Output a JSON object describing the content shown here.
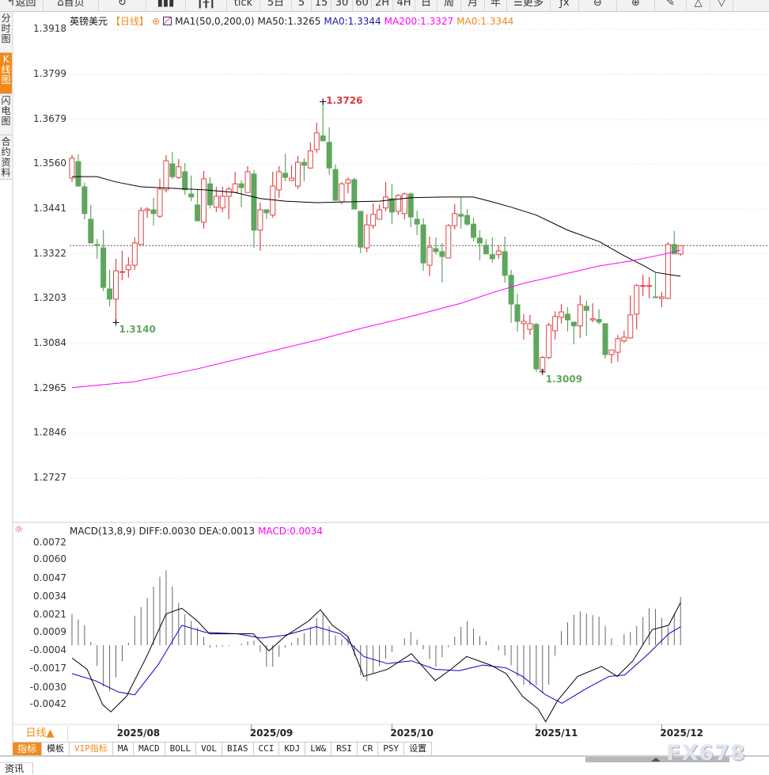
{
  "toolbar": {
    "items": [
      {
        "label": "↰返回",
        "w": 55
      },
      {
        "label": "⌂首页",
        "w": 70
      },
      {
        "label": "↻",
        "w": 60
      },
      {
        "label": "▮▮▮",
        "w": 50
      },
      {
        "label": "┃╂┃",
        "w": 52
      },
      {
        "label": "tick",
        "w": 42
      },
      {
        "label": "5日",
        "w": 40
      },
      {
        "label": "5",
        "w": 25
      },
      {
        "label": "15",
        "w": 25
      },
      {
        "label": "30",
        "w": 27
      },
      {
        "label": "60",
        "w": 24
      },
      {
        "label": "2H",
        "w": 27
      },
      {
        "label": "4H",
        "w": 28
      },
      {
        "label": "日",
        "w": 28
      },
      {
        "label": "周",
        "w": 30
      },
      {
        "label": "月",
        "w": 30
      },
      {
        "label": "年",
        "w": 28
      },
      {
        "label": "☰更多",
        "w": 55
      },
      {
        "label": "ƒx",
        "w": 36
      },
      {
        "label": "⊖",
        "w": 48
      },
      {
        "label": "⊕",
        "w": 48
      },
      {
        "label": "✎",
        "w": 40
      },
      {
        "label": "△",
        "w": 30
      },
      {
        "label": "▽",
        "w": 29
      }
    ]
  },
  "left_tabs": [
    {
      "label": "分时图",
      "active": false
    },
    {
      "label": "K线图",
      "active": true
    },
    {
      "label": "闪电图",
      "active": false
    },
    {
      "label": "合约资料",
      "active": false
    }
  ],
  "legend": {
    "symbol": "英镑美元",
    "period": "【日线】",
    "settings_icon": "⊕",
    "indicator": "MA1(50,0,200,0)",
    "ma50": "MA50:1.3265",
    "ma0_a": "MA0:1.3344",
    "ma200": "MA200:1.3327",
    "ma0_b": "MA0:1.3344"
  },
  "macd_legend": {
    "name": "MACD(13,8,9)",
    "diff": "DIFF:0.0030",
    "dea": "DEA:0.0013",
    "macd": "MACD:0.0034"
  },
  "colors": {
    "up": "#e04545",
    "down": "#5fa65f",
    "ma50": "#000000",
    "ma200": "#ff00ff",
    "dea": "#0000cc",
    "diff": "#000000",
    "accent": "#f08a1c",
    "last_price_line": "#1e7be0"
  },
  "chart_data": [
    {
      "type": "candlestick",
      "ylim": [
        1.2727,
        1.3918
      ],
      "y_ticks": [
        "1.3918",
        "1.3799",
        "1.3679",
        "1.3560",
        "1.3441",
        "1.3322",
        "1.3203",
        "1.3084",
        "1.2965",
        "1.2846",
        "1.2727"
      ],
      "x_ticks": [
        {
          "label": "2025/08",
          "i": 7.4
        },
        {
          "label": "2025/09",
          "i": 28.6
        },
        {
          "label": "2025/10",
          "i": 51
        },
        {
          "label": "2025/11",
          "i": 74
        },
        {
          "label": "2025/12",
          "i": 94
        }
      ],
      "last_price": 1.3344,
      "annotations": [
        {
          "label": "1.3726",
          "i": 40,
          "value": 1.3726,
          "color": "#d83a3a"
        },
        {
          "label": "1.3140",
          "i": 7,
          "value": 1.314,
          "color": "#5fa65f"
        },
        {
          "label": "1.3009",
          "i": 75,
          "value": 1.3009,
          "color": "#5fa65f"
        }
      ],
      "ohlc": [
        [
          1.3523,
          1.3584,
          1.3513,
          1.3576
        ],
        [
          1.3567,
          1.3586,
          1.35,
          1.3502
        ],
        [
          1.35,
          1.3511,
          1.3414,
          1.3429
        ],
        [
          1.3414,
          1.3452,
          1.3351,
          1.3351
        ],
        [
          1.3347,
          1.3362,
          1.3309,
          1.3345
        ],
        [
          1.3338,
          1.3385,
          1.3223,
          1.3233
        ],
        [
          1.3229,
          1.328,
          1.3183,
          1.3202
        ],
        [
          1.3202,
          1.3309,
          1.314,
          1.3277
        ],
        [
          1.3273,
          1.333,
          1.3252,
          1.3275
        ],
        [
          1.328,
          1.3313,
          1.3259,
          1.3292
        ],
        [
          1.3292,
          1.3366,
          1.328,
          1.3351
        ],
        [
          1.3347,
          1.3446,
          1.3347,
          1.3437
        ],
        [
          1.3437,
          1.3446,
          1.3418,
          1.3441
        ],
        [
          1.3439,
          1.3471,
          1.3397,
          1.3429
        ],
        [
          1.3422,
          1.3521,
          1.3418,
          1.3494
        ],
        [
          1.3492,
          1.3584,
          1.3485,
          1.3569
        ],
        [
          1.3561,
          1.3592,
          1.3521,
          1.3527
        ],
        [
          1.3525,
          1.3574,
          1.3521,
          1.3553
        ],
        [
          1.354,
          1.3563,
          1.3479,
          1.3492
        ],
        [
          1.3481,
          1.353,
          1.3462,
          1.3473
        ],
        [
          1.3452,
          1.3494,
          1.3408,
          1.341
        ],
        [
          1.3406,
          1.3542,
          1.3389,
          1.3521
        ],
        [
          1.3508,
          1.3525,
          1.3443,
          1.3452
        ],
        [
          1.3446,
          1.35,
          1.3433,
          1.3475
        ],
        [
          1.3444,
          1.35,
          1.3433,
          1.3475
        ],
        [
          1.3475,
          1.35,
          1.3414,
          1.3494
        ],
        [
          1.3485,
          1.354,
          1.3483,
          1.3508
        ],
        [
          1.3508,
          1.3517,
          1.3446,
          1.3498
        ],
        [
          1.3485,
          1.3555,
          1.3485,
          1.354
        ],
        [
          1.3534,
          1.3544,
          1.3338,
          1.3385
        ],
        [
          1.3385,
          1.3458,
          1.333,
          1.3439
        ],
        [
          1.3439,
          1.3439,
          1.3414,
          1.3431
        ],
        [
          1.3425,
          1.354,
          1.3418,
          1.3502
        ],
        [
          1.3492,
          1.3555,
          1.3471,
          1.354
        ],
        [
          1.3536,
          1.3588,
          1.3515,
          1.3525
        ],
        [
          1.3517,
          1.3557,
          1.3515,
          1.3523
        ],
        [
          1.3502,
          1.3582,
          1.3494,
          1.3565
        ],
        [
          1.3565,
          1.3576,
          1.3515,
          1.3557
        ],
        [
          1.355,
          1.3618,
          1.3548,
          1.3595
        ],
        [
          1.3599,
          1.367,
          1.359,
          1.3643
        ],
        [
          1.3635,
          1.3726,
          1.3622,
          1.3622
        ],
        [
          1.3618,
          1.3658,
          1.3532,
          1.355
        ],
        [
          1.3546,
          1.3559,
          1.3464,
          1.3464
        ],
        [
          1.346,
          1.3512,
          1.3454,
          1.3508
        ],
        [
          1.351,
          1.3525,
          1.3483,
          1.3519
        ],
        [
          1.3519,
          1.3525,
          1.3441,
          1.3441
        ],
        [
          1.3435,
          1.3435,
          1.3324,
          1.334
        ],
        [
          1.3338,
          1.3427,
          1.3326,
          1.3399
        ],
        [
          1.3397,
          1.3456,
          1.3389,
          1.3427
        ],
        [
          1.3414,
          1.3454,
          1.3414,
          1.3439
        ],
        [
          1.3444,
          1.3513,
          1.3435,
          1.3473
        ],
        [
          1.3469,
          1.3508,
          1.3401,
          1.3433
        ],
        [
          1.3435,
          1.3481,
          1.3425,
          1.3477
        ],
        [
          1.3429,
          1.3485,
          1.3414,
          1.3481
        ],
        [
          1.3481,
          1.3485,
          1.3393,
          1.342
        ],
        [
          1.3414,
          1.3437,
          1.3372,
          1.3401
        ],
        [
          1.3399,
          1.3416,
          1.3277,
          1.3298
        ],
        [
          1.3292,
          1.3368,
          1.3263,
          1.334
        ],
        [
          1.3336,
          1.3366,
          1.332,
          1.3328
        ],
        [
          1.3328,
          1.3351,
          1.3246,
          1.3315
        ],
        [
          1.3311,
          1.3401,
          1.3311,
          1.3397
        ],
        [
          1.3397,
          1.3454,
          1.3387,
          1.3429
        ],
        [
          1.3427,
          1.3471,
          1.3389,
          1.3422
        ],
        [
          1.3424,
          1.3441,
          1.3397,
          1.3401
        ],
        [
          1.3401,
          1.3418,
          1.3355,
          1.3366
        ],
        [
          1.3364,
          1.3385,
          1.3305,
          1.3351
        ],
        [
          1.3345,
          1.3361,
          1.3322,
          1.3322
        ],
        [
          1.332,
          1.3366,
          1.3299,
          1.3309
        ],
        [
          1.332,
          1.3345,
          1.3309,
          1.333
        ],
        [
          1.3328,
          1.3368,
          1.3246,
          1.3265
        ],
        [
          1.3265,
          1.328,
          1.3139,
          1.3189
        ],
        [
          1.3187,
          1.3216,
          1.3116,
          1.3143
        ],
        [
          1.3137,
          1.3162,
          1.3095,
          1.3143
        ],
        [
          1.3122,
          1.316,
          1.3107,
          1.3137
        ],
        [
          1.3135,
          1.3139,
          1.3009,
          1.3017
        ],
        [
          1.3014,
          1.3051,
          1.3011,
          1.3047
        ],
        [
          1.3047,
          1.3139,
          1.3043,
          1.3133
        ],
        [
          1.3118,
          1.317,
          1.3095,
          1.3156
        ],
        [
          1.3154,
          1.3189,
          1.3137,
          1.3168
        ],
        [
          1.3162,
          1.3181,
          1.3116,
          1.3147
        ],
        [
          1.3141,
          1.3141,
          1.3082,
          1.3131
        ],
        [
          1.3131,
          1.3212,
          1.3099,
          1.3187
        ],
        [
          1.3183,
          1.3198,
          1.3105,
          1.3172
        ],
        [
          1.3147,
          1.3191,
          1.3141,
          1.315
        ],
        [
          1.3148,
          1.3175,
          1.3135,
          1.3141
        ],
        [
          1.3137,
          1.3137,
          1.3044,
          1.3055
        ],
        [
          1.3055,
          1.3068,
          1.3032,
          1.3067
        ],
        [
          1.3061,
          1.3107,
          1.3036,
          1.3097
        ],
        [
          1.3091,
          1.3118,
          1.3086,
          1.3101
        ],
        [
          1.3099,
          1.3212,
          1.3097,
          1.316
        ],
        [
          1.3162,
          1.3242,
          1.3122,
          1.3238
        ],
        [
          1.3236,
          1.3267,
          1.321,
          1.3238
        ],
        [
          1.3236,
          1.3261,
          1.3204,
          1.3238
        ],
        [
          1.3208,
          1.3271,
          1.3208,
          1.3206
        ],
        [
          1.3204,
          1.3221,
          1.3181,
          1.3208
        ],
        [
          1.3204,
          1.3353,
          1.3202,
          1.3347
        ],
        [
          1.3347,
          1.3383,
          1.3322,
          1.3322
        ],
        [
          1.3322,
          1.3341,
          1.3317,
          1.3344
        ]
      ],
      "ma50": [
        [
          0,
          1.3527
        ],
        [
          4,
          1.3527
        ],
        [
          7,
          1.3513
        ],
        [
          11,
          1.35
        ],
        [
          16,
          1.3496
        ],
        [
          21,
          1.3492
        ],
        [
          26,
          1.3485
        ],
        [
          30,
          1.3469
        ],
        [
          34,
          1.3462
        ],
        [
          39,
          1.3458
        ],
        [
          44,
          1.346
        ],
        [
          49,
          1.3462
        ],
        [
          54,
          1.3471
        ],
        [
          59,
          1.3473
        ],
        [
          64,
          1.3473
        ],
        [
          67,
          1.346
        ],
        [
          70,
          1.3446
        ],
        [
          74,
          1.3425
        ],
        [
          77,
          1.3401
        ],
        [
          79,
          1.3385
        ],
        [
          84,
          1.3355
        ],
        [
          88,
          1.3317
        ],
        [
          91,
          1.3292
        ],
        [
          93,
          1.3273
        ],
        [
          96,
          1.3265
        ],
        [
          97,
          1.3263
        ]
      ],
      "ma200": [
        [
          0,
          1.2967
        ],
        [
          10,
          1.2983
        ],
        [
          20,
          1.3017
        ],
        [
          30,
          1.3057
        ],
        [
          39,
          1.3093
        ],
        [
          46,
          1.3124
        ],
        [
          54,
          1.3156
        ],
        [
          62,
          1.3191
        ],
        [
          67,
          1.3219
        ],
        [
          72,
          1.3244
        ],
        [
          77,
          1.3263
        ],
        [
          84,
          1.329
        ],
        [
          89,
          1.3303
        ],
        [
          94,
          1.332
        ],
        [
          97,
          1.3332
        ]
      ]
    },
    {
      "type": "line",
      "title": "MACD(13,8,9)",
      "ylim": [
        -0.0042,
        0.0072
      ],
      "y_ticks": [
        "0.0072",
        "0.0060",
        "0.0047",
        "0.0034",
        "0.0021",
        "0.0009",
        "-0.0004",
        "-0.0017",
        "-0.0030",
        "-0.0042"
      ],
      "diff": [
        [
          0,
          -0.0009
        ],
        [
          2.4,
          -0.0017
        ],
        [
          4.9,
          -0.0042
        ],
        [
          6.2,
          -0.0047
        ],
        [
          8.7,
          -0.0036
        ],
        [
          11.9,
          -0.0008
        ],
        [
          15,
          0.0022
        ],
        [
          17.5,
          0.0026
        ],
        [
          20,
          0.0017
        ],
        [
          21.9,
          0.0008
        ],
        [
          25.1,
          0.0008
        ],
        [
          28.9,
          0.0008
        ],
        [
          31.4,
          -0.0004
        ],
        [
          33.9,
          0.0006
        ],
        [
          37.7,
          0.0017
        ],
        [
          39.6,
          0.0025
        ],
        [
          41.5,
          0.0014
        ],
        [
          44,
          0.0006
        ],
        [
          46.5,
          -0.0022
        ],
        [
          50.3,
          -0.0017
        ],
        [
          54.1,
          -0.0006
        ],
        [
          57.9,
          -0.0025
        ],
        [
          60.4,
          -0.0017
        ],
        [
          62.9,
          -0.0008
        ],
        [
          66.7,
          -0.0014
        ],
        [
          69.2,
          -0.002
        ],
        [
          71.8,
          -0.0036
        ],
        [
          74.3,
          -0.0045
        ],
        [
          75.5,
          -0.0054
        ],
        [
          77.4,
          -0.0039
        ],
        [
          80.6,
          -0.0022
        ],
        [
          84.4,
          -0.0015
        ],
        [
          86.9,
          -0.0022
        ],
        [
          89.4,
          -0.0011
        ],
        [
          92.5,
          0.0011
        ],
        [
          95.1,
          0.0014
        ],
        [
          97,
          0.003
        ]
      ],
      "dea": [
        [
          0,
          -0.002
        ],
        [
          3.7,
          -0.0025
        ],
        [
          7.4,
          -0.0033
        ],
        [
          10,
          -0.0035
        ],
        [
          13.7,
          -0.0014
        ],
        [
          17.5,
          0.0014
        ],
        [
          21.3,
          0.0009
        ],
        [
          26.4,
          0.0008
        ],
        [
          30.1,
          0.0005
        ],
        [
          33.9,
          0.0007
        ],
        [
          38.9,
          0.0013
        ],
        [
          42.8,
          0.0008
        ],
        [
          46.5,
          -0.0008
        ],
        [
          50.3,
          -0.0013
        ],
        [
          54.1,
          -0.0011
        ],
        [
          57.9,
          -0.0017
        ],
        [
          61.7,
          -0.0018
        ],
        [
          65.5,
          -0.0014
        ],
        [
          69.2,
          -0.0016
        ],
        [
          71.8,
          -0.0022
        ],
        [
          75.5,
          -0.0035
        ],
        [
          78.1,
          -0.0041
        ],
        [
          81.8,
          -0.0031
        ],
        [
          85.6,
          -0.0022
        ],
        [
          88.1,
          -0.0021
        ],
        [
          91.9,
          -0.0006
        ],
        [
          95.1,
          0.0008
        ],
        [
          97,
          0.0013
        ]
      ]
    }
  ],
  "period_selector": "日线▲",
  "bottom_tabs": [
    {
      "label": "指标",
      "cls": "active"
    },
    {
      "label": "模板",
      "cls": ""
    },
    {
      "label": "VIP指标",
      "cls": "vip"
    },
    {
      "label": "MA",
      "cls": ""
    },
    {
      "label": "MACD",
      "cls": ""
    },
    {
      "label": "BOLL",
      "cls": ""
    },
    {
      "label": "VOL",
      "cls": ""
    },
    {
      "label": "BIAS",
      "cls": ""
    },
    {
      "label": "CCI",
      "cls": ""
    },
    {
      "label": "KDJ",
      "cls": ""
    },
    {
      "label": "LW&",
      "cls": ""
    },
    {
      "label": "RSI",
      "cls": ""
    },
    {
      "label": "CR",
      "cls": ""
    },
    {
      "label": "PSY",
      "cls": ""
    },
    {
      "label": "设置",
      "cls": ""
    }
  ],
  "news_tab": "资讯",
  "watermark": "FX678"
}
